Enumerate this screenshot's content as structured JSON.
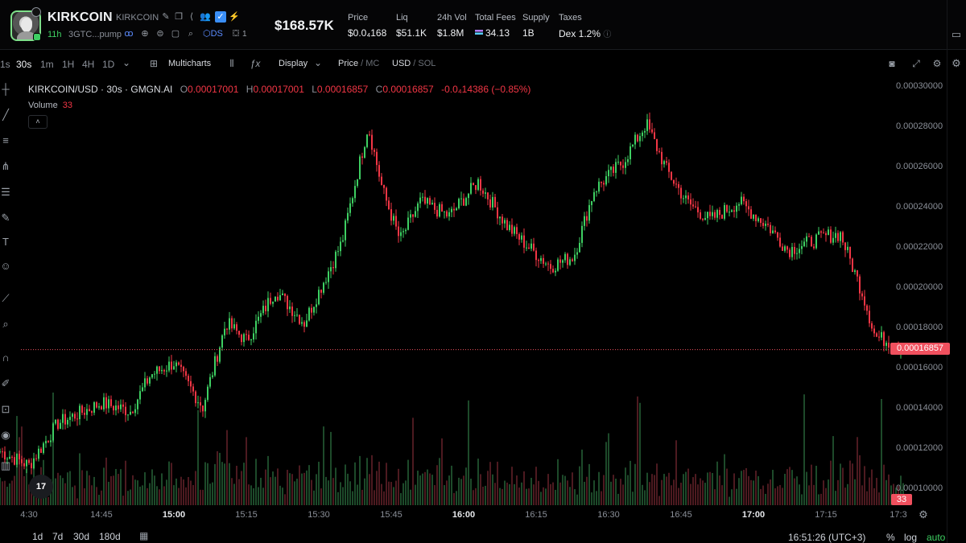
{
  "header": {
    "token_name": "KIRKCOIN",
    "token_ticker": "KIRKCOIN",
    "age": "11h",
    "address": "3GTC...pump",
    "ds_label": "DS",
    "holder_count": "1",
    "market_cap": "$168.57K",
    "stats": [
      {
        "label": "Price",
        "value": "$0.0₄168"
      },
      {
        "label": "Liq",
        "value": "$51.1K"
      },
      {
        "label": "24h Vol",
        "value": "$1.8M"
      },
      {
        "label": "Total Fees",
        "value": "34.13"
      },
      {
        "label": "Supply",
        "value": "1B"
      },
      {
        "label": "Taxes",
        "value": "Dex 1.2%"
      }
    ]
  },
  "toolbar": {
    "timeframes": [
      "1s",
      "30s",
      "1m",
      "1H",
      "4H",
      "1D"
    ],
    "active_timeframe": "30s",
    "multicharts_label": "Multicharts",
    "display_label": "Display",
    "price_label": "Price",
    "mc_label": "MC",
    "usd_label": "USD",
    "sol_label": "SOL"
  },
  "legend": {
    "symbol": "KIRKCOIN/USD · 30s · GMGN.AI",
    "o_label": "O",
    "o_value": "0.00017001",
    "h_label": "H",
    "h_value": "0.00017001",
    "l_label": "L",
    "l_value": "0.00016857",
    "c_label": "C",
    "c_value": "0.00016857",
    "change": "-0.0₄14386 (−0.85%)",
    "volume_label": "Volume",
    "volume_value": "33",
    "collapse_glyph": "˄"
  },
  "price_tag": "0.00016857",
  "volume_tag": "33",
  "tv_logo": "17",
  "footer": {
    "ranges": [
      "1d",
      "7d",
      "30d",
      "180d"
    ],
    "clock": "16:51:26 (UTC+3)",
    "percent": "%",
    "log": "log",
    "auto": "auto"
  },
  "colors": {
    "up": "#3ecf62",
    "down": "#f23645",
    "accent": "#3ecf62"
  },
  "icons": [
    "edit-icon",
    "copy-icon",
    "share-icon",
    "people-icon",
    "twitter-icon",
    "bolt-icon",
    "globe-icon",
    "search-icon",
    "camera-icon",
    "fullscreen-icon",
    "gear-icon"
  ],
  "chart_data": {
    "type": "candlestick",
    "title": "KIRKCOIN/USD · 30s · GMGN.AI",
    "y_ticks": [
      "0.00030000",
      "0.00028000",
      "0.00026000",
      "0.00024000",
      "0.00022000",
      "0.00020000",
      "0.00018000",
      "0.00016000",
      "0.00014000",
      "0.00012000",
      "0.00010000"
    ],
    "ylim": [
      0.0001,
      0.0003
    ],
    "x_ticks": [
      "4:30",
      "14:45",
      "15:00",
      "15:15",
      "15:30",
      "15:45",
      "16:00",
      "16:15",
      "16:30",
      "16:45",
      "17:00",
      "17:15",
      "17:3"
    ],
    "x_ticks_bold": [
      "15:00",
      "16:00",
      "17:00"
    ],
    "last_price": 0.00016857,
    "price_path": [
      [
        14.4,
        0.000118
      ],
      [
        14.5,
        0.000111
      ],
      [
        14.6,
        0.000132
      ],
      [
        14.75,
        0.000142
      ],
      [
        14.85,
        0.000138
      ],
      [
        14.92,
        0.000156
      ],
      [
        15.0,
        0.000162
      ],
      [
        15.1,
        0.00014
      ],
      [
        15.18,
        0.000182
      ],
      [
        15.25,
        0.000173
      ],
      [
        15.35,
        0.000198
      ],
      [
        15.45,
        0.000182
      ],
      [
        15.58,
        0.000222
      ],
      [
        15.67,
        0.00028
      ],
      [
        15.72,
        0.000248
      ],
      [
        15.78,
        0.000223
      ],
      [
        15.85,
        0.000242
      ],
      [
        15.95,
        0.000235
      ],
      [
        16.05,
        0.000252
      ],
      [
        16.15,
        0.00023
      ],
      [
        16.22,
        0.00022
      ],
      [
        16.3,
        0.00021
      ],
      [
        16.38,
        0.000215
      ],
      [
        16.45,
        0.000248
      ],
      [
        16.55,
        0.000262
      ],
      [
        16.63,
        0.000281
      ],
      [
        16.7,
        0.000258
      ],
      [
        16.77,
        0.000242
      ],
      [
        16.85,
        0.000233
      ],
      [
        16.95,
        0.000242
      ],
      [
        17.05,
        0.00023
      ],
      [
        17.12,
        0.000218
      ],
      [
        17.25,
        0.000225
      ],
      [
        17.3,
        0.000226
      ],
      [
        17.38,
        0.000195
      ],
      [
        17.42,
        0.000175
      ],
      [
        17.48,
        0.000172
      ],
      [
        17.52,
        0.0001686
      ]
    ],
    "volume_scale_max": 150
  }
}
